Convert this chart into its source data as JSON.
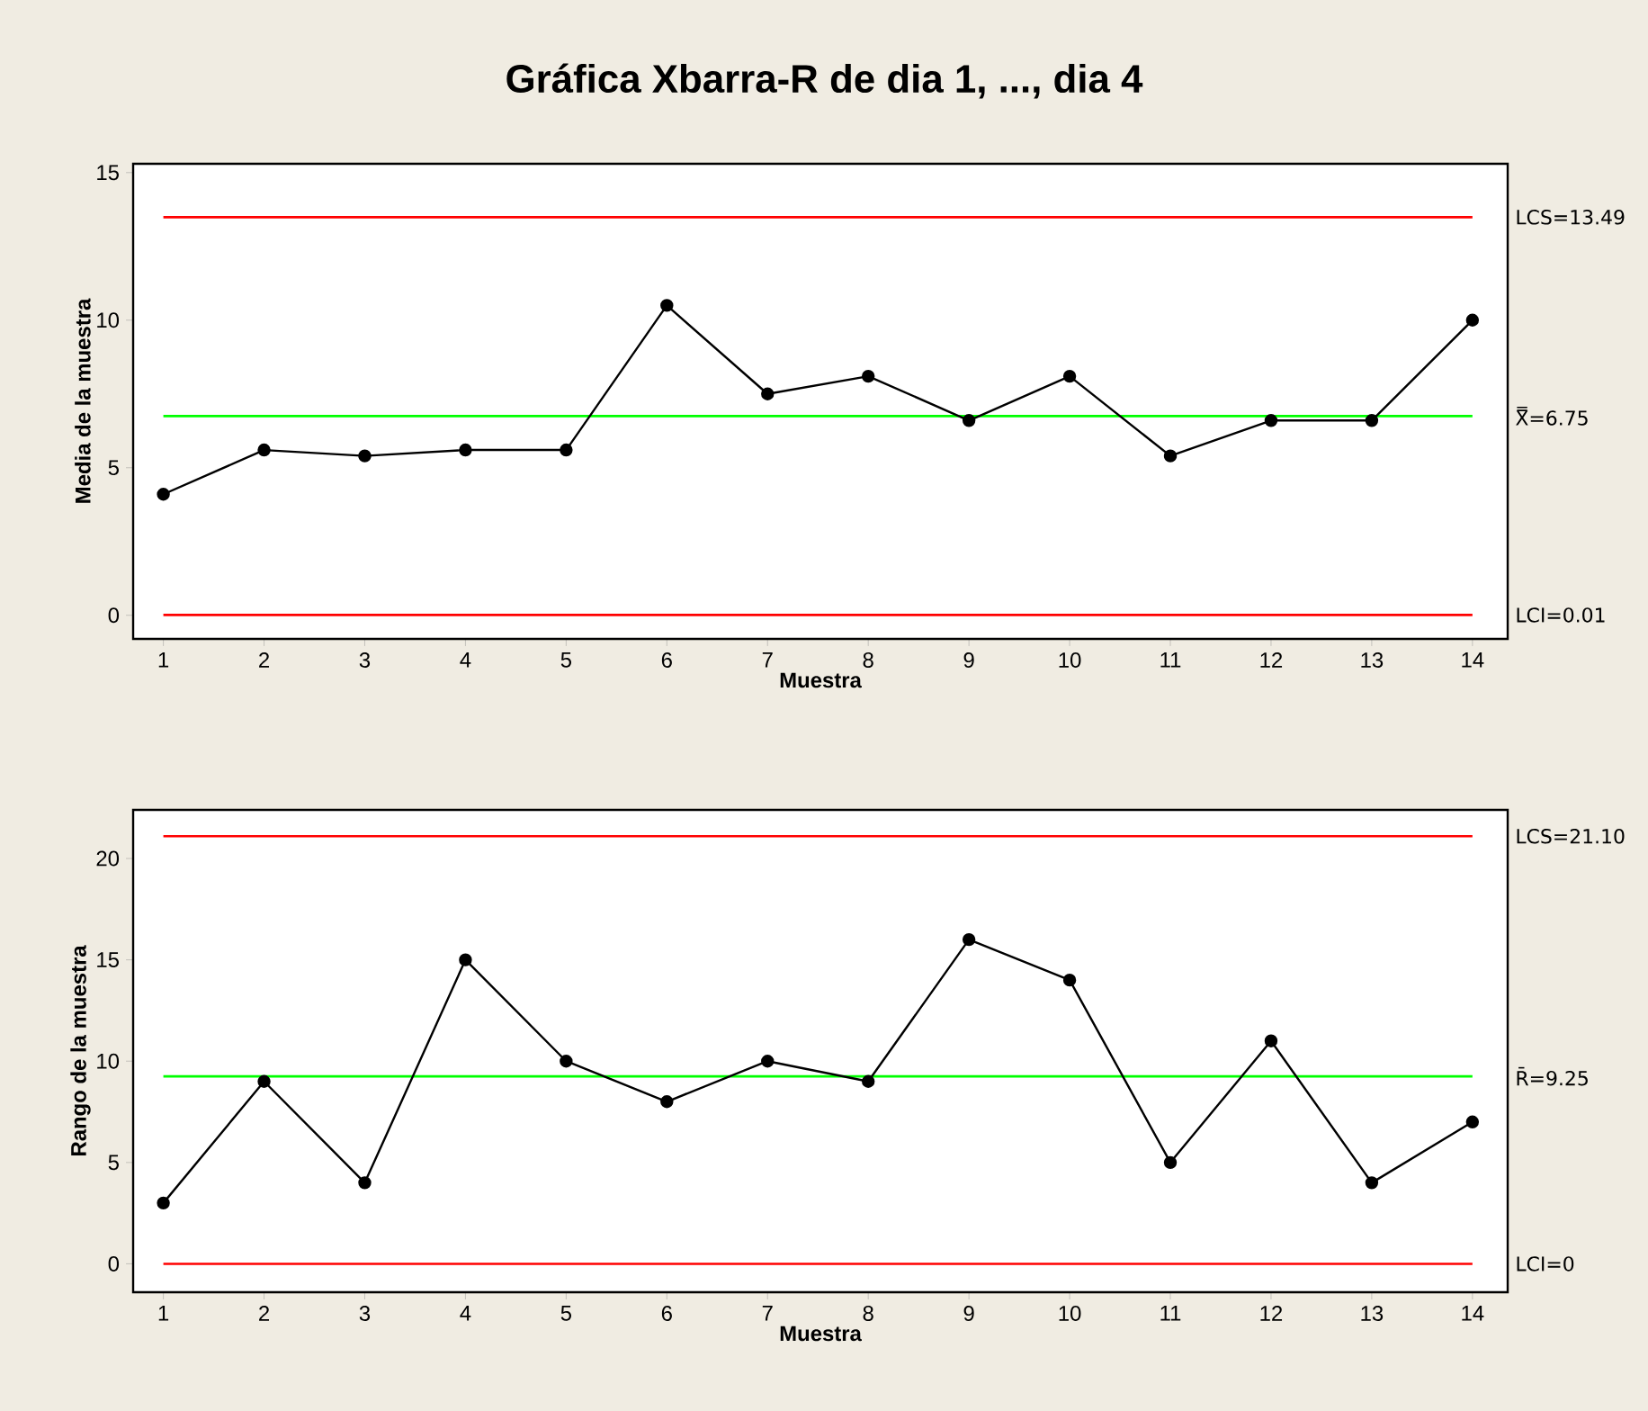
{
  "chart_data": [
    {
      "type": "line",
      "title": "Gráfica Xbarra-R de dia 1, ..., dia 4",
      "xlabel": "Muestra",
      "ylabel": "Media de la muestra",
      "x": [
        1,
        2,
        3,
        4,
        5,
        6,
        7,
        8,
        9,
        10,
        11,
        12,
        13,
        14
      ],
      "series": [
        {
          "color": "#000000",
          "values": [
            4.1,
            5.6,
            5.4,
            5.6,
            5.6,
            10.5,
            7.5,
            8.1,
            6.6,
            8.1,
            5.4,
            6.6,
            6.6,
            10.0
          ]
        }
      ],
      "xlim": [
        0.7,
        14.35
      ],
      "ylim": [
        -0.8,
        15.3
      ],
      "xticks": [
        1,
        2,
        3,
        4,
        5,
        6,
        7,
        8,
        9,
        10,
        11,
        12,
        13,
        14
      ],
      "yticks": [
        0,
        5,
        10,
        15
      ],
      "ref_lines": [
        {
          "axis": "y",
          "value": 13.49,
          "label": "LCS=13.49",
          "color": "#ff0000"
        },
        {
          "axis": "y",
          "value": 6.75,
          "label": "X̿=6.75",
          "color": "#00ff00"
        },
        {
          "axis": "y",
          "value": 0.01,
          "label": "LCI=0.01",
          "color": "#ff0000"
        }
      ],
      "marker": "circle",
      "line_style": "solid",
      "grid": false
    },
    {
      "type": "line",
      "xlabel": "Muestra",
      "ylabel": "Rango de la muestra",
      "x": [
        1,
        2,
        3,
        4,
        5,
        6,
        7,
        8,
        9,
        10,
        11,
        12,
        13,
        14
      ],
      "series": [
        {
          "color": "#000000",
          "values": [
            3,
            9,
            4,
            15,
            10,
            8,
            10,
            9,
            16,
            14,
            5,
            11,
            4,
            7
          ]
        }
      ],
      "xlim": [
        0.7,
        14.35
      ],
      "ylim": [
        -1.4,
        22.4
      ],
      "xticks": [
        1,
        2,
        3,
        4,
        5,
        6,
        7,
        8,
        9,
        10,
        11,
        12,
        13,
        14
      ],
      "yticks": [
        0,
        5,
        10,
        15,
        20
      ],
      "ref_lines": [
        {
          "axis": "y",
          "value": 21.1,
          "label": "LCS=21.10",
          "color": "#ff0000"
        },
        {
          "axis": "y",
          "value": 9.25,
          "label": "R̄=9.25",
          "color": "#00ff00"
        },
        {
          "axis": "y",
          "value": 0,
          "label": "LCI=0",
          "color": "#ff0000"
        }
      ],
      "marker": "circle",
      "line_style": "solid",
      "grid": false
    }
  ]
}
